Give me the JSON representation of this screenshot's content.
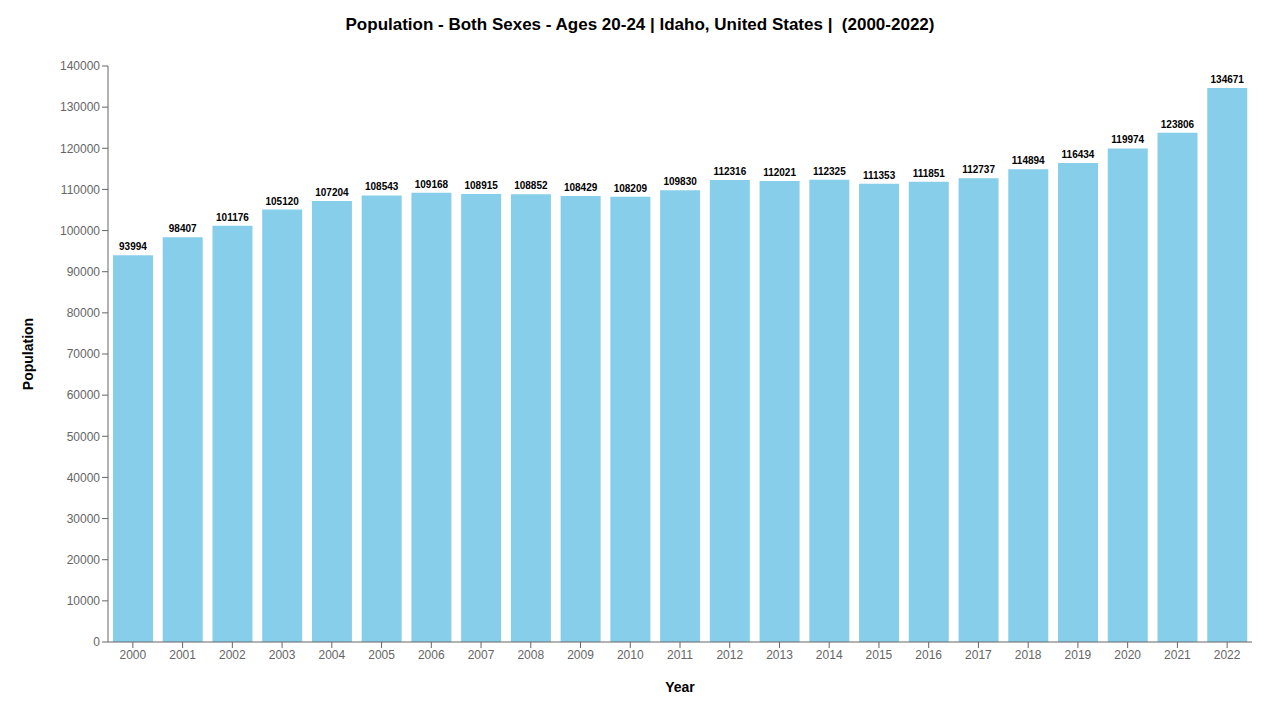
{
  "chart_data": {
    "type": "bar",
    "title": "Population - Both Sexes - Ages 20-24 | Idaho, United States |  (2000-2022)",
    "xlabel": "Year",
    "ylabel": "Population",
    "categories": [
      "2000",
      "2001",
      "2002",
      "2003",
      "2004",
      "2005",
      "2006",
      "2007",
      "2008",
      "2009",
      "2010",
      "2011",
      "2012",
      "2013",
      "2014",
      "2015",
      "2016",
      "2017",
      "2018",
      "2019",
      "2020",
      "2021",
      "2022"
    ],
    "values": [
      93994,
      98407,
      101176,
      105120,
      107204,
      108543,
      109168,
      108915,
      108852,
      108429,
      108209,
      109830,
      112316,
      112021,
      112325,
      111353,
      111851,
      112737,
      114894,
      116434,
      119974,
      123806,
      134671
    ],
    "color": "#87CEEB",
    "ylim": [
      0,
      140000
    ],
    "yticks": [
      0,
      10000,
      20000,
      30000,
      40000,
      50000,
      60000,
      70000,
      80000,
      90000,
      100000,
      110000,
      120000,
      130000,
      140000
    ],
    "grid": false,
    "data_labels": true
  }
}
